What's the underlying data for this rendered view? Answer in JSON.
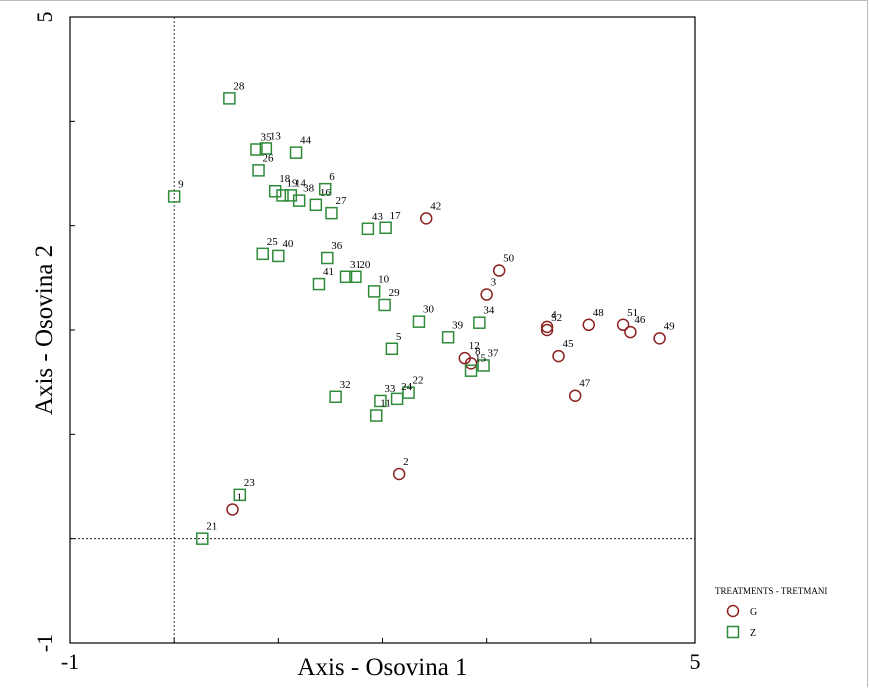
{
  "chart_data": {
    "type": "scatter",
    "xlabel": "Axis - Osovina 1",
    "ylabel": "Axis - Osovina 2",
    "xlim": [
      -1,
      5
    ],
    "ylim": [
      -1,
      5
    ],
    "xticks": [
      "-1",
      "5"
    ],
    "yticks": [
      "-1",
      "5"
    ],
    "reference_lines": {
      "x": 0,
      "y": 0,
      "style": "dotted"
    },
    "grid": false,
    "legend": {
      "title": "TREATMENTS - TRETMANI",
      "position": "bottom-right-outside",
      "entries": [
        {
          "label": "G",
          "marker": "circle",
          "color": "#8b2323"
        },
        {
          "label": "Z",
          "marker": "square",
          "color": "#2e8b3a"
        }
      ]
    },
    "series": [
      {
        "name": "G",
        "marker": "circle",
        "color": "#8b2323",
        "points": [
          {
            "label": "1",
            "x": 0.56,
            "y": 0.28
          },
          {
            "label": "2",
            "x": 2.16,
            "y": 0.62
          },
          {
            "label": "3",
            "x": 3.0,
            "y": 2.34
          },
          {
            "label": "4",
            "x": 3.58,
            "y": 2.03
          },
          {
            "label": "42",
            "x": 2.42,
            "y": 3.07
          },
          {
            "label": "50",
            "x": 3.12,
            "y": 2.57
          },
          {
            "label": "52",
            "x": 3.58,
            "y": 2.0
          },
          {
            "label": "48",
            "x": 3.98,
            "y": 2.05
          },
          {
            "label": "51",
            "x": 4.31,
            "y": 2.05
          },
          {
            "label": "46",
            "x": 4.38,
            "y": 1.98
          },
          {
            "label": "49",
            "x": 4.66,
            "y": 1.92
          },
          {
            "label": "45",
            "x": 3.69,
            "y": 1.75
          },
          {
            "label": "47",
            "x": 3.85,
            "y": 1.37
          },
          {
            "label": "12",
            "x": 2.79,
            "y": 1.73
          },
          {
            "label": "8",
            "x": 2.85,
            "y": 1.68
          }
        ]
      },
      {
        "name": "Z",
        "marker": "square",
        "color": "#2e8b3a",
        "points": [
          {
            "label": "28",
            "x": 0.53,
            "y": 4.22
          },
          {
            "label": "35",
            "x": 0.79,
            "y": 3.73
          },
          {
            "label": "13",
            "x": 0.88,
            "y": 3.74
          },
          {
            "label": "26",
            "x": 0.81,
            "y": 3.53
          },
          {
            "label": "44",
            "x": 1.17,
            "y": 3.7
          },
          {
            "label": "9",
            "x": 0.0,
            "y": 3.28
          },
          {
            "label": "18",
            "x": 0.97,
            "y": 3.33
          },
          {
            "label": "19",
            "x": 1.04,
            "y": 3.29
          },
          {
            "label": "14",
            "x": 1.12,
            "y": 3.29
          },
          {
            "label": "38",
            "x": 1.2,
            "y": 3.24
          },
          {
            "label": "16",
            "x": 1.36,
            "y": 3.2
          },
          {
            "label": "6",
            "x": 1.45,
            "y": 3.35
          },
          {
            "label": "27",
            "x": 1.51,
            "y": 3.12
          },
          {
            "label": "43",
            "x": 1.86,
            "y": 2.97
          },
          {
            "label": "17",
            "x": 2.03,
            "y": 2.98
          },
          {
            "label": "25",
            "x": 0.85,
            "y": 2.73
          },
          {
            "label": "40",
            "x": 1.0,
            "y": 2.71
          },
          {
            "label": "36",
            "x": 1.47,
            "y": 2.69
          },
          {
            "label": "41",
            "x": 1.39,
            "y": 2.44
          },
          {
            "label": "31",
            "x": 1.65,
            "y": 2.51
          },
          {
            "label": "20",
            "x": 1.74,
            "y": 2.51
          },
          {
            "label": "10",
            "x": 1.92,
            "y": 2.37
          },
          {
            "label": "29",
            "x": 2.02,
            "y": 2.24
          },
          {
            "label": "30",
            "x": 2.35,
            "y": 2.08
          },
          {
            "label": "5",
            "x": 2.09,
            "y": 1.82
          },
          {
            "label": "39",
            "x": 2.63,
            "y": 1.93
          },
          {
            "label": "34",
            "x": 2.93,
            "y": 2.07
          },
          {
            "label": "37",
            "x": 2.97,
            "y": 1.66
          },
          {
            "label": "15",
            "x": 2.85,
            "y": 1.61
          },
          {
            "label": "32",
            "x": 1.55,
            "y": 1.36
          },
          {
            "label": "33",
            "x": 1.98,
            "y": 1.32
          },
          {
            "label": "11",
            "x": 1.94,
            "y": 1.18
          },
          {
            "label": "22",
            "x": 2.25,
            "y": 1.4
          },
          {
            "label": "24",
            "x": 2.14,
            "y": 1.34
          },
          {
            "label": "23",
            "x": 0.63,
            "y": 0.42
          },
          {
            "label": "21",
            "x": 0.27,
            "y": -0.0
          }
        ]
      }
    ]
  }
}
